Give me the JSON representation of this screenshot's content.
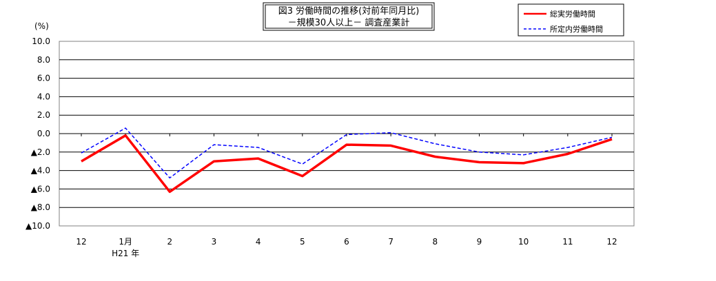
{
  "chart_data": {
    "type": "line",
    "title": "図3 労働時間の推移(対前年同月比)",
    "subtitle": "－規模30人以上－ 調査産業計",
    "ylabel": "(%)",
    "ylim": [
      -10,
      10
    ],
    "yticks": [
      "10.0",
      "8.0",
      "6.0",
      "4.0",
      "2.0",
      "0.0",
      "▲2.0",
      "▲4.0",
      "▲6.0",
      "▲8.0",
      "▲10.0"
    ],
    "categories": [
      "12",
      "1月",
      "2",
      "3",
      "4",
      "5",
      "6",
      "7",
      "8",
      "9",
      "10",
      "11",
      "12"
    ],
    "year_label": "H21 年",
    "legend_position": "top-right",
    "grid": true,
    "series": [
      {
        "name": "総実労働時間",
        "color": "#ff0000",
        "style": "solid",
        "values": [
          -3.0,
          -0.2,
          -6.3,
          -3.0,
          -2.7,
          -4.6,
          -1.2,
          -1.3,
          -2.5,
          -3.1,
          -3.2,
          -2.2,
          -0.6
        ]
      },
      {
        "name": "所定内労働時間",
        "color": "#0000ff",
        "style": "dashed",
        "values": [
          -2.1,
          0.6,
          -4.8,
          -1.2,
          -1.5,
          -3.3,
          -0.1,
          0.1,
          -1.1,
          -2.0,
          -2.3,
          -1.5,
          -0.4
        ]
      }
    ]
  }
}
